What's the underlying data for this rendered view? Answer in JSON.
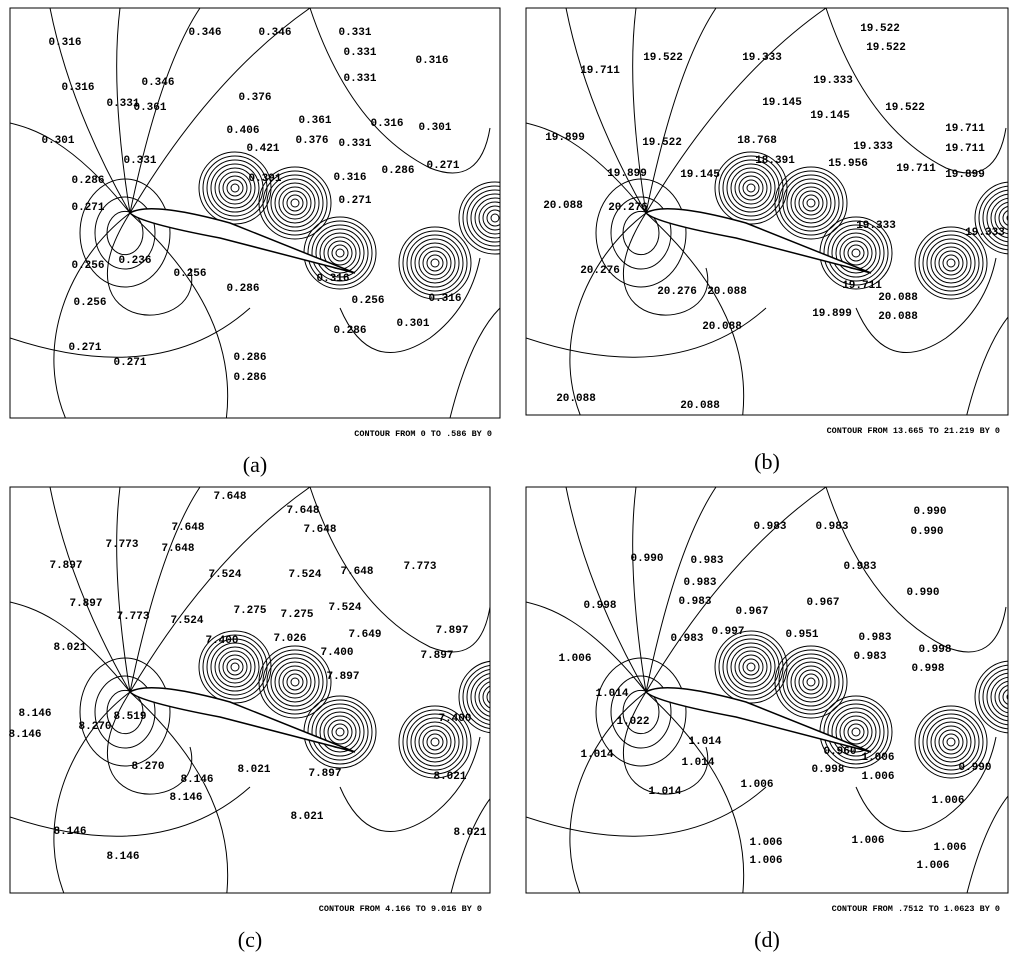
{
  "panels": [
    {
      "label": "(a)",
      "caption": "CONTOUR FROM 0 TO .586 BY 0",
      "contour_labels": [
        "0.316",
        "0.346",
        "0.346",
        "0.331",
        "0.331",
        "0.316",
        "0.316",
        "0.346",
        "0.331",
        "0.361",
        "0.376",
        "0.331",
        "0.361",
        "0.406",
        "0.376",
        "0.421",
        "0.331",
        "0.316",
        "0.301",
        "0.301",
        "0.331",
        "0.391",
        "0.286",
        "0.316",
        "0.286",
        "0.271",
        "0.271",
        "0.271",
        "0.256",
        "0.236",
        "0.256",
        "0.286",
        "0.316",
        "0.256",
        "0.256",
        "0.316",
        "0.286",
        "0.301",
        "0.271",
        "0.271",
        "0.286",
        "0.286"
      ]
    },
    {
      "label": "(b)",
      "caption": "CONTOUR FROM 13.665 TO 21.219 BY 0",
      "contour_labels": [
        "19.522",
        "19.522",
        "19.522",
        "19.333",
        "19.711",
        "19.333",
        "19.522",
        "19.145",
        "19.145",
        "19.711",
        "19.899",
        "19.522",
        "18.768",
        "19.333",
        "19.711",
        "18.391",
        "15.956",
        "19.711",
        "19.899",
        "19.899",
        "19.145",
        "20.088",
        "20.276",
        "19.333",
        "19.333",
        "20.276",
        "19.711",
        "20.276",
        "20.088",
        "20.088",
        "19.899",
        "20.088",
        "20.088",
        "20.088",
        "20.088"
      ]
    },
    {
      "label": "(c)",
      "caption": "CONTOUR FROM 4.166 TO 9.016 BY 0",
      "contour_labels": [
        "7.648",
        "7.648",
        "7.648",
        "7.648",
        "7.773",
        "7.648",
        "7.897",
        "7.524",
        "7.524",
        "7.648",
        "7.773",
        "7.897",
        "7.773",
        "7.524",
        "7.275",
        "7.275",
        "7.524",
        "7.400",
        "7.026",
        "7.649",
        "7.897",
        "8.021",
        "7.400",
        "7.897",
        "7.897",
        "8.146",
        "8.146",
        "8.270",
        "8.519",
        "7.400",
        "8.270",
        "8.146",
        "8.146",
        "8.021",
        "7.897",
        "8.021",
        "8.021",
        "8.021",
        "8.146",
        "8.146"
      ]
    },
    {
      "label": "(d)",
      "caption": "CONTOUR FROM .7512 TO 1.0623 BY 0",
      "contour_labels": [
        "0.990",
        "0.983",
        "0.983",
        "0.990",
        "0.990",
        "0.983",
        "0.983",
        "0.983",
        "0.998",
        "0.983",
        "0.967",
        "0.967",
        "0.990",
        "0.997",
        "0.951",
        "0.983",
        "0.998",
        "0.998",
        "0.983",
        "1.006",
        "0.983",
        "1.014",
        "1.022",
        "1.014",
        "1.014",
        "1.014",
        "0.960",
        "0.998",
        "1.006",
        "1.006",
        "0.990",
        "1.006",
        "1.014",
        "1.006",
        "1.006",
        "1.006",
        "1.006",
        "1.006",
        "1.006"
      ]
    }
  ]
}
